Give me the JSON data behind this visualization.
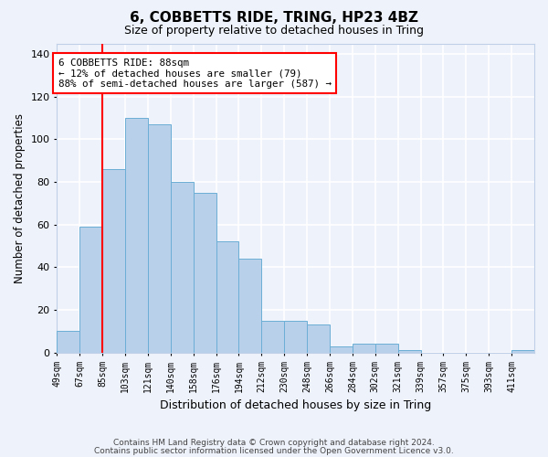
{
  "title1": "6, COBBETTS RIDE, TRING, HP23 4BZ",
  "title2": "Size of property relative to detached houses in Tring",
  "xlabel": "Distribution of detached houses by size in Tring",
  "ylabel": "Number of detached properties",
  "footnote1": "Contains HM Land Registry data © Crown copyright and database right 2024.",
  "footnote2": "Contains public sector information licensed under the Open Government Licence v3.0.",
  "bin_labels": [
    "49sqm",
    "67sqm",
    "85sqm",
    "103sqm",
    "121sqm",
    "140sqm",
    "158sqm",
    "176sqm",
    "194sqm",
    "212sqm",
    "230sqm",
    "248sqm",
    "266sqm",
    "284sqm",
    "302sqm",
    "321sqm",
    "339sqm",
    "357sqm",
    "375sqm",
    "393sqm",
    "411sqm"
  ],
  "bar_values": [
    10,
    59,
    86,
    110,
    107,
    80,
    75,
    52,
    44,
    15,
    15,
    13,
    3,
    4,
    4,
    1,
    0,
    0,
    0,
    0,
    1
  ],
  "bar_color": "#b8d0ea",
  "bar_edge_color": "#6baed6",
  "vline_x_idx": 2,
  "vline_color": "red",
  "annotation_title": "6 COBBETTS RIDE: 88sqm",
  "annotation_line1": "← 12% of detached houses are smaller (79)",
  "annotation_line2": "88% of semi-detached houses are larger (587) →",
  "annotation_box_color": "red",
  "ylim": [
    0,
    145
  ],
  "background_color": "#eef2fb",
  "grid_color": "white"
}
